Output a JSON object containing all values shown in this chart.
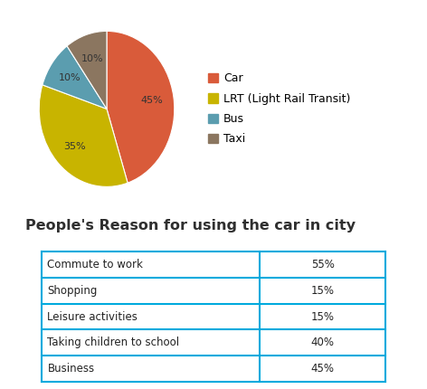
{
  "pie_labels": [
    "Car",
    "LRT (Light Rail Transit)",
    "Bus",
    "Taxi"
  ],
  "pie_values": [
    45,
    35,
    10,
    10
  ],
  "pie_colors": [
    "#D95B3A",
    "#C8B400",
    "#5B9DAF",
    "#8B7660"
  ],
  "legend_labels": [
    "Car",
    "LRT (Light Rail Transit)",
    "Bus",
    "Taxi"
  ],
  "table_title": "People's Reason for using the car in city",
  "table_rows": [
    [
      "Commute to work",
      "55%"
    ],
    [
      "Shopping",
      "15%"
    ],
    [
      "Leisure activities",
      "15%"
    ],
    [
      "Taking children to school",
      "40%"
    ],
    [
      "Business",
      "45%"
    ]
  ],
  "table_border_color": "#00AADD",
  "background_color": "#FFFFFF",
  "title_fontsize": 11.5,
  "table_fontsize": 8.5,
  "legend_fontsize": 9,
  "pct_fontsize": 8,
  "pct_color": "#333333"
}
